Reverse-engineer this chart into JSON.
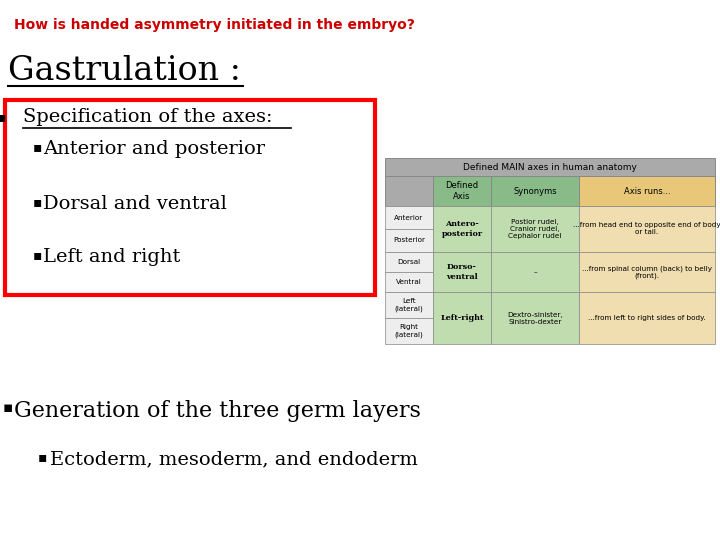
{
  "title": "How is handed asymmetry initiated in the embryo?",
  "title_color": "#cc0000",
  "bg_color": "#ffffff",
  "gastrulation_text": "Gastrulation :",
  "box_bullet_header": "Specification of the axes:",
  "box_bullets": [
    "Anterior and posterior",
    "Dorsal and ventral",
    "Left and right"
  ],
  "bottom_bullet1": "Generation of the three germ layers",
  "bottom_bullet2": "Ectoderm, mesoderm, and endoderm",
  "table": {
    "title": "Defined MAIN axes in human anatomy",
    "header_bg": "#aaaaaa",
    "col1_header_bg": "#88bb88",
    "col2_header_bg": "#88bb88",
    "col3_header_bg": "#e8c878",
    "row_bg_gray": "#eeeeee",
    "row_bg_green": "#c0ddb0",
    "row_bg_orange": "#f0ddb0",
    "col_headers": [
      "Defined\nAxis",
      "Synonyms",
      "Axis runs..."
    ],
    "rows": [
      {
        "left_cells": [
          "Anterior",
          "Posterior"
        ],
        "middle_cell": "Antero-\nposterior",
        "synonyms": "Postior rudel,\nCranior rudel,\nCephalor rudel",
        "description": "...from head end to opposite end of body\nor tail."
      },
      {
        "left_cells": [
          "Dorsal",
          "Ventral"
        ],
        "middle_cell": "Dorso-\nventral",
        "synonyms": "–",
        "description": "...from spinal column (back) to belly\n(front)."
      },
      {
        "left_cells": [
          "Left\n(lateral)",
          "Right\n(lateral)"
        ],
        "middle_cell": "Left-right",
        "synonyms": "Dextro-sinister,\nSinistro-dexter",
        "description": "...from left to right sides of body."
      }
    ]
  }
}
